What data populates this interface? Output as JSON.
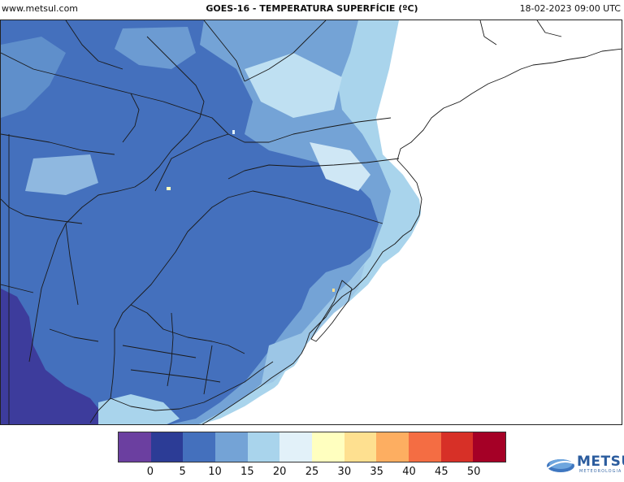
{
  "header": {
    "site": "www.metsul.com",
    "title": "GOES-16 - TEMPERATURA SUPERFÍCIE (ºC)",
    "datetime": "18-02-2023 09:00 UTC"
  },
  "colorbar": {
    "colors": [
      "#6b3fa0",
      "#2c3c96",
      "#4470bd",
      "#74a3d6",
      "#a9d4ec",
      "#e2f1f9",
      "#ffffbf",
      "#fee090",
      "#fdae61",
      "#f46d43",
      "#d73027",
      "#a50026"
    ],
    "ticks": [
      "0",
      "5",
      "10",
      "15",
      "20",
      "25",
      "30",
      "35",
      "40",
      "45",
      "50"
    ]
  },
  "map_colors": {
    "coldest": "#3d3c9c",
    "cold": "#4470bd",
    "mid": "#74a3d6",
    "cool": "#a9d4ec",
    "mild": "#e2f1f9",
    "border": "#1a1a1a"
  },
  "logo": {
    "name": "METSUL",
    "subtitle": "METEOROLOGIA"
  }
}
